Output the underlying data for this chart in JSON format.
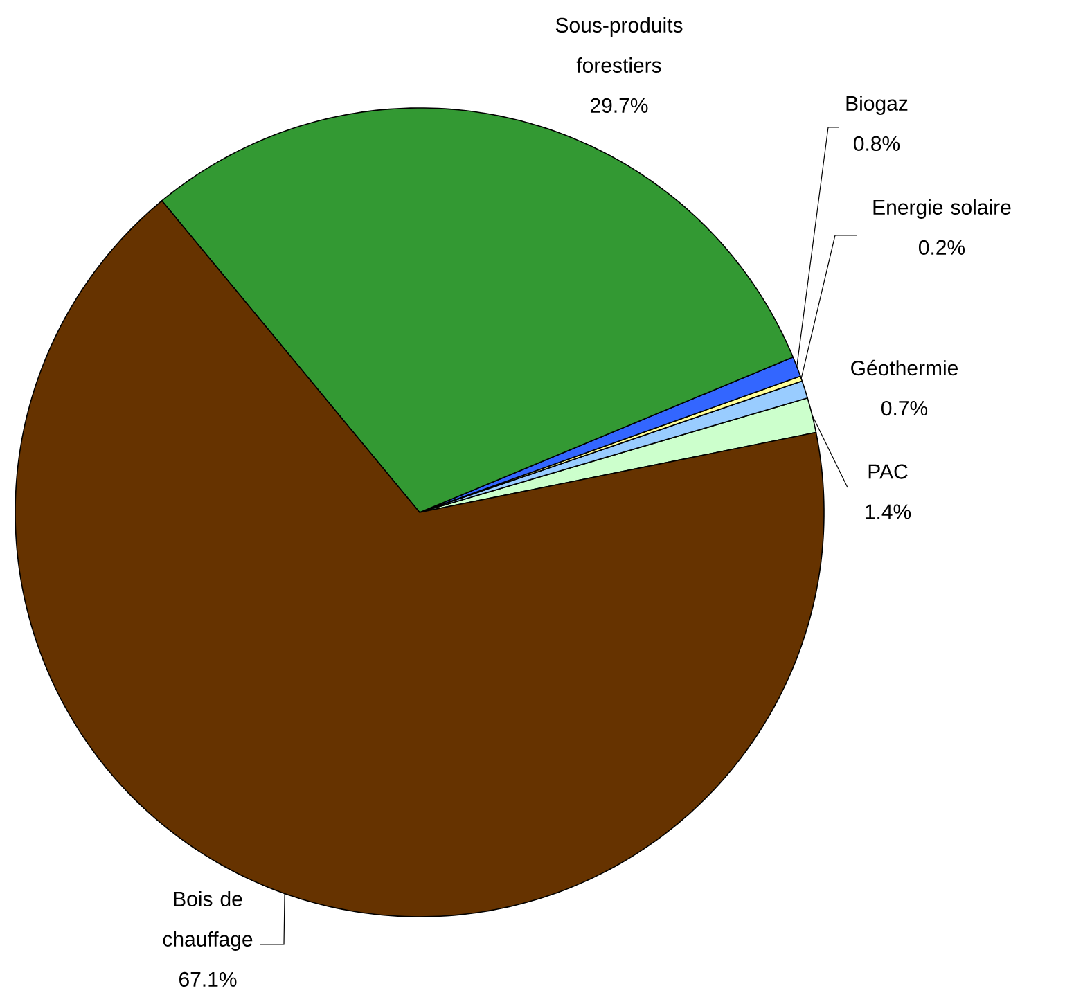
{
  "chart_data": {
    "type": "pie",
    "categories": [
      "PAC",
      "Géothermie",
      "Energie solaire",
      "Biogaz",
      "Sous-produits forestiers",
      "Bois de chauffage"
    ],
    "values": [
      1.4,
      0.7,
      0.2,
      0.8,
      29.7,
      67.1
    ],
    "colors": [
      "#ccffcc",
      "#99ccff",
      "#ffff99",
      "#3366ff",
      "#339933",
      "#663300"
    ],
    "value_labels": [
      "1.4%",
      "0.7%",
      "0.2%",
      "0.8%",
      "29.7%",
      "67.1%"
    ]
  }
}
